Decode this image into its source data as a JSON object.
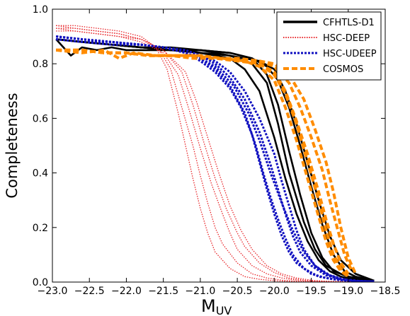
{
  "chart_data": {
    "type": "line",
    "xlabel": "M",
    "xlabel_sub": "UV",
    "ylabel": "Completeness",
    "xlim": [
      -23.0,
      -18.5
    ],
    "ylim": [
      0.0,
      1.0
    ],
    "xticks": [
      -23.0,
      -22.5,
      -22.0,
      -21.5,
      -21.0,
      -20.5,
      -20.0,
      -19.5,
      -19.0,
      -18.5
    ],
    "xtick_labels": [
      "−23.0",
      "−22.5",
      "−22.0",
      "−21.5",
      "−21.0",
      "−20.5",
      "−20.0",
      "−19.5",
      "−19.0",
      "−18.5"
    ],
    "yticks": [
      0.0,
      0.2,
      0.4,
      0.6,
      0.8,
      1.0
    ],
    "ytick_labels": [
      "0.0",
      "0.2",
      "0.4",
      "0.6",
      "0.8",
      "1.0"
    ],
    "legend_position": "top-right",
    "grid": false,
    "series": [
      {
        "name": "CFHTLS-D1",
        "color": "#000000",
        "style": "solid",
        "curves": [
          {
            "x": [
              -22.95,
              -22.75,
              -22.6,
              -22.4,
              -22.2,
              -22.0,
              -21.8,
              -21.6,
              -21.4,
              -21.2,
              -21.0,
              -20.8,
              -20.6,
              -20.4,
              -20.2,
              -20.0,
              -19.85,
              -19.7,
              -19.55,
              -19.4,
              -19.25,
              -19.1,
              -18.95,
              -18.65
            ],
            "y": [
              0.89,
              0.83,
              0.86,
              0.85,
              0.86,
              0.85,
              0.85,
              0.85,
              0.85,
              0.85,
              0.84,
              0.83,
              0.82,
              0.78,
              0.7,
              0.53,
              0.38,
              0.25,
              0.15,
              0.08,
              0.04,
              0.02,
              0.01,
              0.005
            ]
          },
          {
            "x": [
              -22.95,
              -22.6,
              -22.2,
              -21.8,
              -21.4,
              -21.0,
              -20.6,
              -20.3,
              -20.1,
              -19.95,
              -19.8,
              -19.65,
              -19.5,
              -19.35,
              -19.2,
              -19.0,
              -18.65
            ],
            "y": [
              0.89,
              0.88,
              0.87,
              0.86,
              0.86,
              0.85,
              0.84,
              0.82,
              0.76,
              0.65,
              0.48,
              0.32,
              0.18,
              0.09,
              0.04,
              0.02,
              0.005
            ]
          },
          {
            "x": [
              -22.95,
              -22.6,
              -22.2,
              -21.8,
              -21.4,
              -21.0,
              -20.6,
              -20.2,
              -20.0,
              -19.85,
              -19.7,
              -19.55,
              -19.4,
              -19.25,
              -19.1,
              -18.9,
              -18.65
            ],
            "y": [
              0.89,
              0.88,
              0.87,
              0.86,
              0.85,
              0.85,
              0.83,
              0.81,
              0.78,
              0.7,
              0.58,
              0.44,
              0.3,
              0.17,
              0.08,
              0.03,
              0.005
            ]
          },
          {
            "x": [
              -22.95,
              -22.6,
              -22.2,
              -21.8,
              -21.4,
              -21.0,
              -20.6,
              -20.3,
              -20.1,
              -19.95,
              -19.8,
              -19.65,
              -19.5,
              -19.35,
              -19.2,
              -19.05,
              -18.9,
              -18.65
            ],
            "y": [
              0.89,
              0.88,
              0.87,
              0.86,
              0.85,
              0.85,
              0.84,
              0.82,
              0.79,
              0.74,
              0.64,
              0.5,
              0.35,
              0.21,
              0.1,
              0.04,
              0.02,
              0.005
            ]
          },
          {
            "x": [
              -22.95,
              -22.6,
              -22.2,
              -21.8,
              -21.4,
              -21.0,
              -20.6,
              -20.3,
              -20.1,
              -19.95,
              -19.8,
              -19.6,
              -19.45,
              -19.3,
              -19.1,
              -18.9,
              -18.65
            ],
            "y": [
              0.89,
              0.88,
              0.87,
              0.86,
              0.85,
              0.84,
              0.83,
              0.8,
              0.73,
              0.58,
              0.4,
              0.22,
              0.12,
              0.06,
              0.03,
              0.01,
              0.005
            ]
          }
        ]
      },
      {
        "name": "HSC-DEEP",
        "color": "#e8262a",
        "style": "dotted",
        "curves": [
          {
            "x": [
              -22.95,
              -22.7,
              -22.4,
              -22.1,
              -21.8,
              -21.6,
              -21.45,
              -21.3,
              -21.2,
              -21.1,
              -21.0,
              -20.9,
              -20.8,
              -20.6,
              -20.4,
              -20.2,
              -20.0,
              -19.8,
              -19.5,
              -19.2,
              -18.9,
              -18.65
            ],
            "y": [
              0.94,
              0.94,
              0.93,
              0.92,
              0.9,
              0.86,
              0.78,
              0.62,
              0.5,
              0.38,
              0.27,
              0.18,
              0.11,
              0.05,
              0.02,
              0.01,
              0.005,
              0.002,
              0.0,
              0.0,
              0.0,
              0.0
            ]
          },
          {
            "x": [
              -22.95,
              -22.7,
              -22.4,
              -22.1,
              -21.8,
              -21.55,
              -21.4,
              -21.25,
              -21.1,
              -21.0,
              -20.9,
              -20.8,
              -20.7,
              -20.5,
              -20.3,
              -20.1,
              -19.9,
              -19.7,
              -19.4,
              -19.1,
              -18.8,
              -18.65
            ],
            "y": [
              0.93,
              0.93,
              0.92,
              0.91,
              0.89,
              0.85,
              0.78,
              0.64,
              0.5,
              0.39,
              0.29,
              0.2,
              0.14,
              0.07,
              0.03,
              0.015,
              0.007,
              0.003,
              0.001,
              0.0,
              0.0,
              0.0
            ]
          },
          {
            "x": [
              -22.95,
              -22.7,
              -22.4,
              -22.1,
              -21.8,
              -21.5,
              -21.3,
              -21.15,
              -21.0,
              -20.85,
              -20.7,
              -20.6,
              -20.5,
              -20.3,
              -20.1,
              -19.9,
              -19.7,
              -19.5,
              -19.2,
              -18.9,
              -18.65
            ],
            "y": [
              0.92,
              0.92,
              0.91,
              0.9,
              0.88,
              0.84,
              0.76,
              0.63,
              0.49,
              0.36,
              0.25,
              0.18,
              0.12,
              0.06,
              0.03,
              0.015,
              0.007,
              0.003,
              0.001,
              0.0,
              0.0
            ]
          },
          {
            "x": [
              -22.95,
              -22.7,
              -22.4,
              -22.1,
              -21.8,
              -21.5,
              -21.25,
              -21.1,
              -20.95,
              -20.8,
              -20.65,
              -20.5,
              -20.4,
              -20.2,
              -20.0,
              -19.8,
              -19.6,
              -19.4,
              -19.1,
              -18.8,
              -18.65
            ],
            "y": [
              0.94,
              0.93,
              0.92,
              0.91,
              0.89,
              0.85,
              0.77,
              0.65,
              0.51,
              0.38,
              0.27,
              0.18,
              0.13,
              0.07,
              0.035,
              0.015,
              0.007,
              0.003,
              0.001,
              0.0,
              0.0
            ]
          },
          {
            "x": [
              -22.95,
              -22.7,
              -22.4,
              -22.1,
              -21.8,
              -21.5,
              -21.2,
              -21.05,
              -20.9,
              -20.75,
              -20.6,
              -20.45,
              -20.3,
              -20.1,
              -19.9,
              -19.7,
              -19.5,
              -19.3,
              -19.0,
              -18.8,
              -18.65
            ],
            "y": [
              0.93,
              0.92,
              0.91,
              0.9,
              0.89,
              0.85,
              0.77,
              0.66,
              0.53,
              0.4,
              0.28,
              0.19,
              0.12,
              0.06,
              0.03,
              0.015,
              0.007,
              0.003,
              0.001,
              0.0,
              0.0
            ]
          }
        ]
      },
      {
        "name": "HSC-UDEEP",
        "color": "#1010c0",
        "style": "dashdot",
        "curves": [
          {
            "x": [
              -22.95,
              -22.6,
              -22.2,
              -21.8,
              -21.5,
              -21.2,
              -21.0,
              -20.8,
              -20.6,
              -20.45,
              -20.3,
              -20.2,
              -20.1,
              -20.0,
              -19.9,
              -19.8,
              -19.7,
              -19.5,
              -19.3,
              -19.1,
              -18.9,
              -18.65
            ],
            "y": [
              0.9,
              0.89,
              0.88,
              0.87,
              0.86,
              0.84,
              0.81,
              0.77,
              0.71,
              0.64,
              0.54,
              0.44,
              0.34,
              0.25,
              0.17,
              0.11,
              0.07,
              0.03,
              0.015,
              0.007,
              0.003,
              0.002
            ]
          },
          {
            "x": [
              -22.95,
              -22.6,
              -22.2,
              -21.8,
              -21.5,
              -21.2,
              -21.0,
              -20.8,
              -20.6,
              -20.4,
              -20.25,
              -20.15,
              -20.05,
              -19.95,
              -19.85,
              -19.75,
              -19.6,
              -19.4,
              -19.2,
              -19.0,
              -18.8,
              -18.65
            ],
            "y": [
              0.9,
              0.89,
              0.88,
              0.87,
              0.86,
              0.84,
              0.82,
              0.78,
              0.72,
              0.62,
              0.5,
              0.4,
              0.31,
              0.23,
              0.16,
              0.1,
              0.05,
              0.02,
              0.01,
              0.005,
              0.002,
              0.002
            ]
          },
          {
            "x": [
              -22.95,
              -22.6,
              -22.2,
              -21.8,
              -21.5,
              -21.2,
              -21.0,
              -20.8,
              -20.6,
              -20.4,
              -20.2,
              -20.05,
              -19.95,
              -19.85,
              -19.75,
              -19.65,
              -19.5,
              -19.3,
              -19.1,
              -18.9,
              -18.65
            ],
            "y": [
              0.89,
              0.88,
              0.88,
              0.87,
              0.86,
              0.85,
              0.83,
              0.8,
              0.75,
              0.67,
              0.55,
              0.43,
              0.34,
              0.25,
              0.17,
              0.11,
              0.06,
              0.025,
              0.01,
              0.004,
              0.002
            ]
          },
          {
            "x": [
              -22.95,
              -22.6,
              -22.2,
              -21.8,
              -21.5,
              -21.2,
              -21.0,
              -20.8,
              -20.6,
              -20.4,
              -20.2,
              -20.0,
              -19.9,
              -19.8,
              -19.7,
              -19.6,
              -19.45,
              -19.25,
              -19.05,
              -18.85,
              -18.65
            ],
            "y": [
              0.89,
              0.88,
              0.87,
              0.87,
              0.86,
              0.85,
              0.83,
              0.81,
              0.77,
              0.7,
              0.6,
              0.47,
              0.37,
              0.28,
              0.19,
              0.12,
              0.06,
              0.025,
              0.01,
              0.004,
              0.002
            ]
          },
          {
            "x": [
              -22.95,
              -22.6,
              -22.2,
              -21.8,
              -21.5,
              -21.2,
              -21.0,
              -20.8,
              -20.55,
              -20.35,
              -20.2,
              -20.05,
              -19.9,
              -19.75,
              -19.6,
              -19.45,
              -19.3,
              -19.1,
              -18.9,
              -18.65
            ],
            "y": [
              0.9,
              0.89,
              0.88,
              0.87,
              0.86,
              0.84,
              0.82,
              0.79,
              0.72,
              0.62,
              0.52,
              0.4,
              0.29,
              0.19,
              0.11,
              0.06,
              0.03,
              0.01,
              0.004,
              0.002
            ]
          }
        ]
      },
      {
        "name": "COSMOS",
        "color": "#ff8c00",
        "style": "dashed",
        "curves": [
          {
            "x": [
              -22.95,
              -22.6,
              -22.3,
              -22.1,
              -21.9,
              -21.6,
              -21.3,
              -21.0,
              -20.7,
              -20.4,
              -20.2,
              -20.0,
              -19.85,
              -19.7,
              -19.55,
              -19.4,
              -19.3,
              -19.2,
              -19.1,
              -19.0
            ],
            "y": [
              0.85,
              0.84,
              0.85,
              0.82,
              0.84,
              0.83,
              0.83,
              0.83,
              0.82,
              0.81,
              0.79,
              0.74,
              0.64,
              0.52,
              0.38,
              0.24,
              0.15,
              0.08,
              0.04,
              0.02
            ]
          },
          {
            "x": [
              -22.95,
              -22.6,
              -22.3,
              -22.0,
              -21.7,
              -21.4,
              -21.1,
              -20.8,
              -20.5,
              -20.2,
              -20.0,
              -19.85,
              -19.7,
              -19.55,
              -19.4,
              -19.3,
              -19.2,
              -19.1,
              -19.0
            ],
            "y": [
              0.85,
              0.85,
              0.84,
              0.84,
              0.83,
              0.83,
              0.83,
              0.82,
              0.82,
              0.8,
              0.77,
              0.7,
              0.59,
              0.47,
              0.33,
              0.23,
              0.14,
              0.07,
              0.03
            ]
          },
          {
            "x": [
              -22.95,
              -22.6,
              -22.3,
              -22.0,
              -21.7,
              -21.4,
              -21.1,
              -20.8,
              -20.5,
              -20.2,
              -20.0,
              -19.8,
              -19.65,
              -19.5,
              -19.35,
              -19.25,
              -19.15,
              -19.05,
              -18.95
            ],
            "y": [
              0.85,
              0.85,
              0.84,
              0.84,
              0.83,
              0.83,
              0.83,
              0.82,
              0.82,
              0.81,
              0.79,
              0.73,
              0.64,
              0.53,
              0.41,
              0.3,
              0.2,
              0.1,
              0.04
            ]
          },
          {
            "x": [
              -22.95,
              -22.6,
              -22.3,
              -22.0,
              -21.7,
              -21.4,
              -21.1,
              -20.8,
              -20.5,
              -20.2,
              -20.0,
              -19.8,
              -19.6,
              -19.45,
              -19.3,
              -19.2,
              -19.1,
              -19.0,
              -18.9
            ],
            "y": [
              0.85,
              0.85,
              0.84,
              0.84,
              0.83,
              0.83,
              0.83,
              0.82,
              0.82,
              0.81,
              0.8,
              0.76,
              0.67,
              0.56,
              0.44,
              0.33,
              0.2,
              0.09,
              0.03
            ]
          },
          {
            "x": [
              -22.95,
              -22.6,
              -22.3,
              -22.0,
              -21.7,
              -21.4,
              -21.1,
              -20.8,
              -20.5,
              -20.2,
              -20.0,
              -19.85,
              -19.7,
              -19.55,
              -19.4,
              -19.3,
              -19.2,
              -19.1,
              -19.0
            ],
            "y": [
              0.85,
              0.85,
              0.84,
              0.84,
              0.83,
              0.83,
              0.82,
              0.82,
              0.81,
              0.8,
              0.76,
              0.69,
              0.58,
              0.44,
              0.3,
              0.19,
              0.1,
              0.05,
              0.02
            ]
          }
        ]
      }
    ]
  }
}
